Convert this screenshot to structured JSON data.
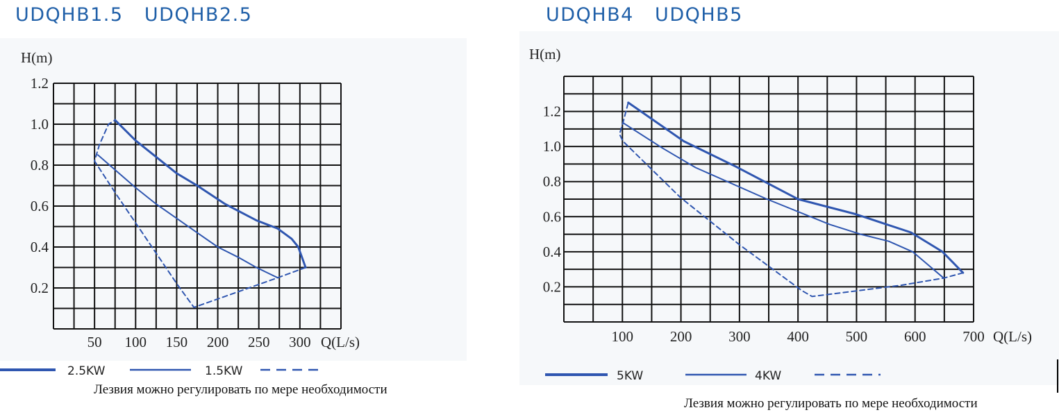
{
  "colors": {
    "title": "#1f5fa8",
    "curve": "#2f56b0",
    "grid": "#111111"
  },
  "caption": "Лезвия можно регулировать по мере необходимости",
  "chart_data": [
    {
      "type": "line",
      "title": "UDQHB1.5   UDQHB2.5",
      "xlabel": "Q(L/s)",
      "ylabel": "H(m)",
      "xlim": [
        0,
        350
      ],
      "ylim": [
        0,
        1.2
      ],
      "grid": true,
      "x_step": 25,
      "y_step": 0.1,
      "xticks": [
        50,
        100,
        150,
        200,
        250,
        300
      ],
      "yticks": [
        0.2,
        0.4,
        0.6,
        0.8,
        1.0,
        1.2
      ],
      "legend": [
        "2.5KW",
        "1.5KW"
      ],
      "legend_placement": "bottom",
      "series": [
        {
          "name": "2.5KW",
          "style": "thick",
          "points": [
            [
              75,
              1.02
            ],
            [
              100,
              0.92
            ],
            [
              150,
              0.76
            ],
            [
              175,
              0.7
            ],
            [
              209,
              0.61
            ],
            [
              247,
              0.53
            ],
            [
              273,
              0.49
            ],
            [
              290,
              0.44
            ],
            [
              298,
              0.4
            ],
            [
              307,
              0.3
            ]
          ]
        },
        {
          "name": "1.5KW",
          "style": "thin",
          "points": [
            [
              54,
              0.85
            ],
            [
              100,
              0.69
            ],
            [
              125,
              0.61
            ],
            [
              150,
              0.54
            ],
            [
              175,
              0.47
            ],
            [
              200,
              0.4
            ],
            [
              225,
              0.35
            ],
            [
              247,
              0.3
            ],
            [
              273,
              0.25
            ]
          ]
        },
        {
          "style": "dashed",
          "points": [
            [
              307,
              0.3
            ],
            [
              273,
              0.25
            ],
            [
              171,
              0.105
            ],
            [
              152,
              0.21
            ],
            [
              76,
              0.66
            ],
            [
              50,
              0.82
            ],
            [
              56,
              0.9
            ],
            [
              67,
              1.0
            ],
            [
              75,
              1.02
            ]
          ]
        }
      ]
    },
    {
      "type": "line",
      "title": "UDQHB4   UDQHB5",
      "xlabel": "Q(L/s)",
      "ylabel": "H(m)",
      "xlim": [
        0,
        700
      ],
      "ylim": [
        0,
        1.4
      ],
      "grid": true,
      "x_step": 50,
      "y_step": 0.1,
      "xticks": [
        100,
        200,
        300,
        400,
        500,
        600,
        700
      ],
      "yticks": [
        0.2,
        0.4,
        0.6,
        0.8,
        1.0,
        1.2
      ],
      "legend": [
        "5KW",
        "4KW"
      ],
      "legend_placement": "bottom",
      "series": [
        {
          "name": "5KW",
          "style": "thick",
          "points": [
            [
              110,
              1.25
            ],
            [
              205,
              1.03
            ],
            [
              294,
              0.885
            ],
            [
              400,
              0.7
            ],
            [
              498,
              0.615
            ],
            [
              593,
              0.51
            ],
            [
              647,
              0.4
            ],
            [
              682,
              0.28
            ]
          ]
        },
        {
          "name": "4KW",
          "style": "thin",
          "points": [
            [
              101,
              1.135
            ],
            [
              169,
              0.99
            ],
            [
              225,
              0.88
            ],
            [
              347,
              0.7
            ],
            [
              454,
              0.556
            ],
            [
              507,
              0.5
            ],
            [
              555,
              0.46
            ],
            [
              596,
              0.4
            ],
            [
              649,
              0.25
            ]
          ]
        },
        {
          "style": "dashed",
          "points": [
            [
              682,
              0.28
            ],
            [
              649,
              0.25
            ],
            [
              578,
              0.21
            ],
            [
              424,
              0.145
            ],
            [
              406,
              0.18
            ],
            [
              300,
              0.44
            ],
            [
              199,
              0.71
            ],
            [
              101,
              1.03
            ],
            [
              95,
              1.07
            ],
            [
              101,
              1.135
            ],
            [
              110,
              1.25
            ]
          ]
        }
      ]
    }
  ]
}
